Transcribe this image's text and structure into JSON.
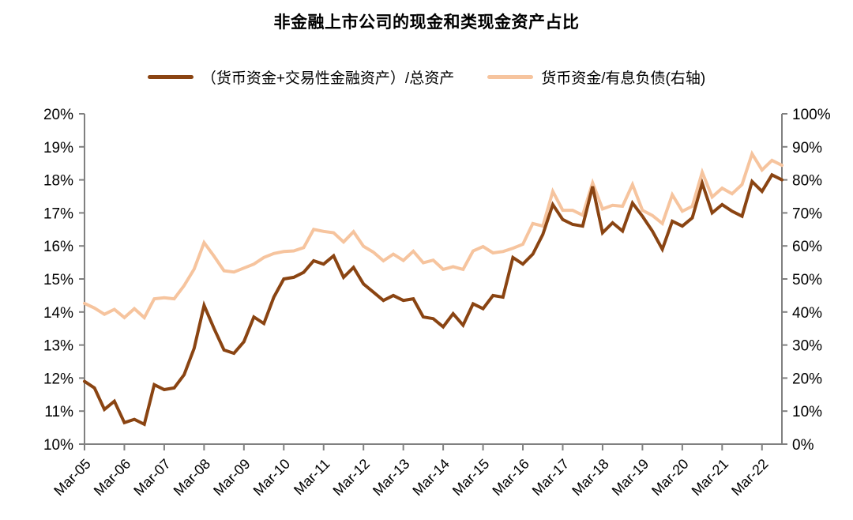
{
  "title": "非金融上市公司的现金和类现金资产占比",
  "legend": [
    {
      "label": "（货币资金+交易性金融资产）/总资产",
      "color": "#8A4412"
    },
    {
      "label": "货币资金/有息负债(右轴)",
      "color": "#F6C49E"
    }
  ],
  "colors": {
    "axis": "#808080",
    "text": "#000000",
    "background": "#FFFFFF"
  },
  "chart_data": {
    "type": "line",
    "title": "非金融上市公司的现金和类现金资产占比",
    "grid": false,
    "legend_position": "top",
    "categories": [
      "Mar-05",
      "Jun-05",
      "Sep-05",
      "Dec-05",
      "Mar-06",
      "Jun-06",
      "Sep-06",
      "Dec-06",
      "Mar-07",
      "Jun-07",
      "Sep-07",
      "Dec-07",
      "Mar-08",
      "Jun-08",
      "Sep-08",
      "Dec-08",
      "Mar-09",
      "Jun-09",
      "Sep-09",
      "Dec-09",
      "Mar-10",
      "Jun-10",
      "Sep-10",
      "Dec-10",
      "Mar-11",
      "Jun-11",
      "Sep-11",
      "Dec-11",
      "Mar-12",
      "Jun-12",
      "Sep-12",
      "Dec-12",
      "Mar-13",
      "Jun-13",
      "Sep-13",
      "Dec-13",
      "Mar-14",
      "Jun-14",
      "Sep-14",
      "Dec-14",
      "Mar-15",
      "Jun-15",
      "Sep-15",
      "Dec-15",
      "Mar-16",
      "Jun-16",
      "Sep-16",
      "Dec-16",
      "Mar-17",
      "Jun-17",
      "Sep-17",
      "Dec-17",
      "Mar-18",
      "Jun-18",
      "Sep-18",
      "Dec-18",
      "Mar-19",
      "Jun-19",
      "Sep-19",
      "Dec-19",
      "Mar-20",
      "Jun-20",
      "Sep-20",
      "Dec-20",
      "Mar-21",
      "Jun-21",
      "Sep-21",
      "Dec-21",
      "Mar-22",
      "Jun-22",
      "Sep-22"
    ],
    "x_ticks": [
      "Mar-05",
      "Mar-06",
      "Mar-07",
      "Mar-08",
      "Mar-09",
      "Mar-10",
      "Mar-11",
      "Mar-12",
      "Mar-13",
      "Mar-14",
      "Mar-15",
      "Mar-16",
      "Mar-17",
      "Mar-18",
      "Mar-19",
      "Mar-20",
      "Mar-21",
      "Mar-22"
    ],
    "left_axis": {
      "min": 10,
      "max": 20,
      "ticks": [
        "20%",
        "19%",
        "18%",
        "17%",
        "16%",
        "15%",
        "14%",
        "13%",
        "12%",
        "11%",
        "10%"
      ]
    },
    "right_axis": {
      "min": 0,
      "max": 100,
      "ticks": [
        "100%",
        "90%",
        "80%",
        "70%",
        "60%",
        "50%",
        "40%",
        "30%",
        "20%",
        "10%",
        "0%"
      ]
    },
    "series": [
      {
        "name": "（货币资金+交易性金融资产）/总资产",
        "axis": "left",
        "color": "#8A4412",
        "values": [
          11.9,
          11.7,
          11.05,
          11.3,
          10.65,
          10.75,
          10.6,
          11.8,
          11.65,
          11.7,
          12.1,
          12.9,
          14.2,
          13.5,
          12.85,
          12.75,
          13.1,
          13.85,
          13.65,
          14.45,
          15.0,
          15.05,
          15.2,
          15.55,
          15.45,
          15.7,
          15.05,
          15.35,
          14.85,
          14.6,
          14.35,
          14.5,
          14.35,
          14.4,
          13.85,
          13.8,
          13.55,
          13.95,
          13.6,
          14.25,
          14.1,
          14.5,
          14.45,
          15.65,
          15.45,
          15.75,
          16.35,
          17.25,
          16.8,
          16.65,
          16.6,
          17.8,
          16.4,
          16.7,
          16.45,
          17.3,
          16.9,
          16.45,
          15.9,
          16.75,
          16.6,
          16.85,
          17.9,
          17.0,
          17.25,
          17.05,
          16.9,
          17.95,
          17.65,
          18.15,
          18.0
        ]
      },
      {
        "name": "货币资金/有息负债(右轴)",
        "axis": "right",
        "color": "#F6C49E",
        "values": [
          42.6,
          41.2,
          39.3,
          40.8,
          38.3,
          41.0,
          38.3,
          44.0,
          44.3,
          44.0,
          48.0,
          53.0,
          61.0,
          56.9,
          52.5,
          52.1,
          53.3,
          54.5,
          56.5,
          57.7,
          58.3,
          58.5,
          59.5,
          65.0,
          64.4,
          64.0,
          61.2,
          64.3,
          59.9,
          58.1,
          55.5,
          57.5,
          55.6,
          58.4,
          54.9,
          55.7,
          52.9,
          53.7,
          52.9,
          58.5,
          59.8,
          57.9,
          58.3,
          59.3,
          60.5,
          66.8,
          66.0,
          76.5,
          70.8,
          70.8,
          69.3,
          79.1,
          71.2,
          72.3,
          72.0,
          78.6,
          70.8,
          69.2,
          66.8,
          75.5,
          70.5,
          72.0,
          82.3,
          74.8,
          77.5,
          75.8,
          78.6,
          87.9,
          83.0,
          85.9,
          84.4
        ]
      }
    ]
  }
}
